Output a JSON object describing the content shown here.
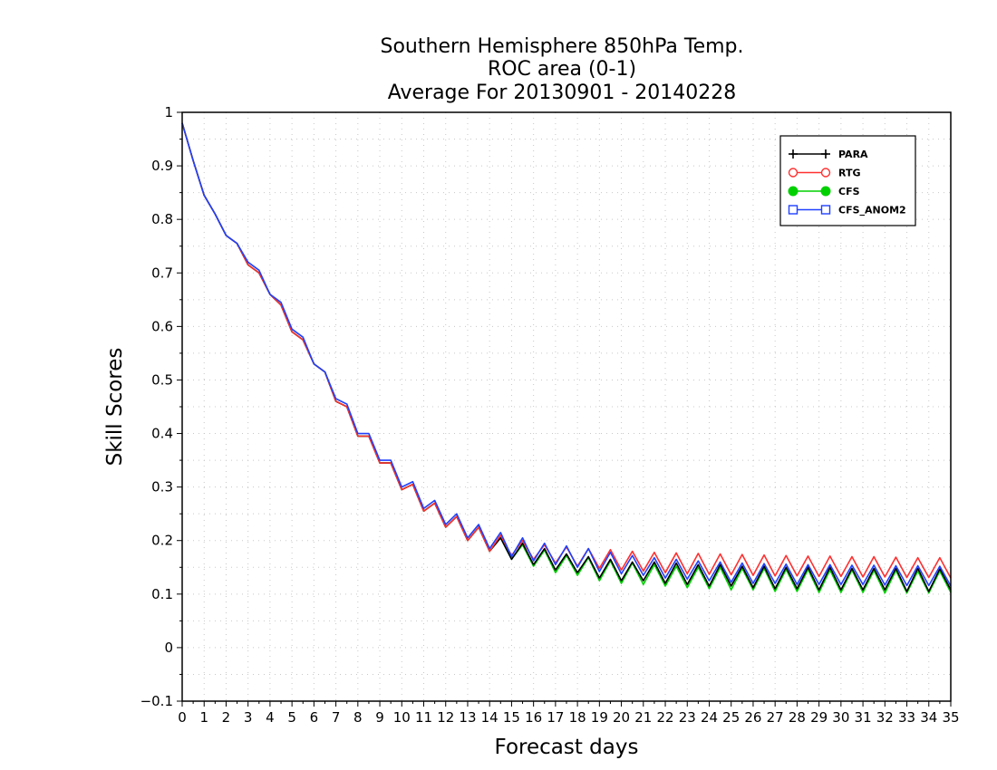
{
  "chart_data": {
    "type": "line",
    "title_lines": [
      "Southern Hemisphere 850hPa Temp.",
      "ROC area (0-1)",
      "Average For 20130901 - 20140228"
    ],
    "xlabel": "Forecast days",
    "ylabel": "Skill Scores",
    "xlim": [
      0,
      35
    ],
    "ylim": [
      -0.1,
      1
    ],
    "x_ticks": [
      "0",
      "1",
      "2",
      "3",
      "4",
      "5",
      "6",
      "7",
      "8",
      "9",
      "10",
      "11",
      "12",
      "13",
      "14",
      "15",
      "16",
      "17",
      "18",
      "19",
      "20",
      "21",
      "22",
      "23",
      "24",
      "25",
      "26",
      "27",
      "28",
      "29",
      "30",
      "31",
      "32",
      "33",
      "34",
      "35"
    ],
    "y_ticks": [
      "1",
      "0.9",
      "0.8",
      "0.7",
      "0.6",
      "0.5",
      "0.4",
      "0.3",
      "0.2",
      "0.1",
      "0",
      "-0.1"
    ],
    "y_tick_values": [
      1,
      0.9,
      0.8,
      0.7,
      0.6,
      0.5,
      0.4,
      0.3,
      0.2,
      0.1,
      0,
      -0.1
    ],
    "grid": true,
    "legend_position": "top-right",
    "x": [
      0,
      0.5,
      1,
      1.5,
      2,
      2.5,
      3,
      3.5,
      4,
      4.5,
      5,
      5.5,
      6,
      6.5,
      7,
      7.5,
      8,
      8.5,
      9,
      9.5,
      10,
      10.5,
      11,
      11.5,
      12,
      12.5,
      13,
      13.5,
      14,
      14.5,
      15,
      15.5,
      16,
      16.5,
      17,
      17.5,
      18,
      18.5,
      19,
      19.5,
      20,
      20.5,
      21,
      21.5,
      22,
      22.5,
      23,
      23.5,
      24,
      24.5,
      25,
      25.5,
      26,
      26.5,
      27,
      27.5,
      28,
      28.5,
      29,
      29.5,
      30,
      30.5,
      31,
      31.5,
      32,
      32.5,
      33,
      33.5,
      34,
      34.5,
      35
    ],
    "series": [
      {
        "name": "PARA",
        "color": "#000000",
        "marker": "plus",
        "values": [
          0.98,
          0.91,
          0.845,
          0.81,
          0.77,
          0.755,
          0.715,
          0.7,
          0.66,
          0.64,
          0.59,
          0.575,
          0.53,
          0.515,
          0.46,
          0.45,
          0.395,
          0.395,
          0.345,
          0.345,
          0.295,
          0.305,
          0.255,
          0.27,
          0.225,
          0.245,
          0.2,
          0.225,
          0.18,
          0.205,
          0.165,
          0.195,
          0.155,
          0.185,
          0.145,
          0.175,
          0.14,
          0.17,
          0.13,
          0.165,
          0.125,
          0.16,
          0.125,
          0.16,
          0.12,
          0.158,
          0.118,
          0.155,
          0.115,
          0.155,
          0.115,
          0.152,
          0.112,
          0.152,
          0.11,
          0.15,
          0.11,
          0.15,
          0.108,
          0.15,
          0.108,
          0.148,
          0.108,
          0.148,
          0.108,
          0.148,
          0.105,
          0.148,
          0.105,
          0.147,
          0.108
        ]
      },
      {
        "name": "RTG",
        "color": "#ff3030",
        "marker": "circle-open",
        "values": [
          0.98,
          0.91,
          0.845,
          0.81,
          0.77,
          0.755,
          0.715,
          0.7,
          0.66,
          0.64,
          0.59,
          0.575,
          0.53,
          0.515,
          0.46,
          0.45,
          0.395,
          0.395,
          0.345,
          0.345,
          0.295,
          0.305,
          0.255,
          0.27,
          0.225,
          0.245,
          0.2,
          0.225,
          0.18,
          0.21,
          0.172,
          0.2,
          0.165,
          0.192,
          0.158,
          0.188,
          0.152,
          0.185,
          0.148,
          0.183,
          0.145,
          0.18,
          0.143,
          0.178,
          0.14,
          0.177,
          0.138,
          0.176,
          0.137,
          0.175,
          0.136,
          0.174,
          0.135,
          0.173,
          0.134,
          0.172,
          0.134,
          0.171,
          0.133,
          0.171,
          0.133,
          0.17,
          0.132,
          0.17,
          0.132,
          0.169,
          0.131,
          0.168,
          0.131,
          0.168,
          0.13
        ]
      },
      {
        "name": "CFS",
        "color": "#00d000",
        "marker": "circle-filled",
        "values": [
          0.98,
          0.91,
          0.845,
          0.81,
          0.77,
          0.755,
          0.715,
          0.7,
          0.66,
          0.64,
          0.59,
          0.575,
          0.53,
          0.515,
          0.46,
          0.45,
          0.395,
          0.395,
          0.345,
          0.345,
          0.295,
          0.305,
          0.255,
          0.27,
          0.225,
          0.245,
          0.2,
          0.225,
          0.18,
          0.205,
          0.165,
          0.192,
          0.152,
          0.182,
          0.14,
          0.172,
          0.135,
          0.168,
          0.125,
          0.162,
          0.12,
          0.158,
          0.118,
          0.155,
          0.115,
          0.152,
          0.112,
          0.15,
          0.11,
          0.15,
          0.108,
          0.148,
          0.108,
          0.148,
          0.105,
          0.146,
          0.105,
          0.146,
          0.103,
          0.145,
          0.103,
          0.145,
          0.103,
          0.144,
          0.102,
          0.144,
          0.102,
          0.143,
          0.102,
          0.143,
          0.103
        ]
      },
      {
        "name": "CFS_ANOM2",
        "color": "#2040ff",
        "marker": "square-open",
        "values": [
          0.98,
          0.91,
          0.845,
          0.81,
          0.77,
          0.755,
          0.72,
          0.705,
          0.66,
          0.645,
          0.595,
          0.58,
          0.53,
          0.515,
          0.465,
          0.455,
          0.4,
          0.4,
          0.35,
          0.35,
          0.3,
          0.31,
          0.26,
          0.275,
          0.23,
          0.25,
          0.205,
          0.23,
          0.185,
          0.215,
          0.17,
          0.205,
          0.162,
          0.195,
          0.155,
          0.19,
          0.15,
          0.185,
          0.142,
          0.178,
          0.138,
          0.172,
          0.135,
          0.168,
          0.13,
          0.165,
          0.128,
          0.162,
          0.125,
          0.16,
          0.122,
          0.158,
          0.12,
          0.157,
          0.12,
          0.156,
          0.118,
          0.155,
          0.118,
          0.155,
          0.118,
          0.154,
          0.118,
          0.154,
          0.117,
          0.153,
          0.116,
          0.153,
          0.116,
          0.152,
          0.115
        ]
      }
    ]
  }
}
